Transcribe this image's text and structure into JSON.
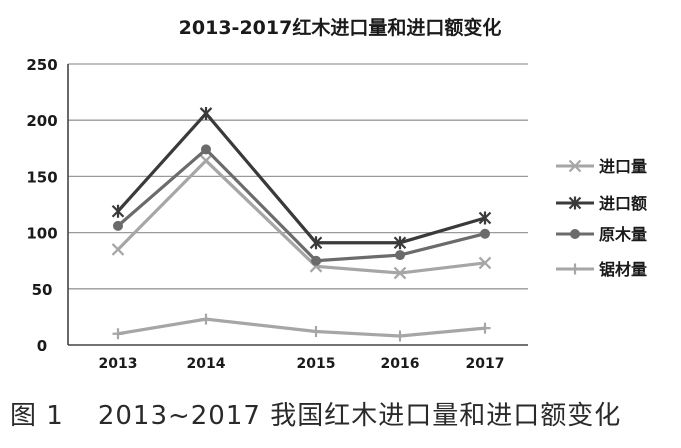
{
  "chart_data": {
    "type": "line",
    "title": "2013-2017红木进口量和进口额变化",
    "categories": [
      "2013",
      "2014",
      "2015",
      "2016",
      "2017"
    ],
    "ylim": [
      0,
      250
    ],
    "yticks": [
      0,
      50,
      100,
      150,
      200,
      250
    ],
    "grid": true,
    "legend_position": "right",
    "series": [
      {
        "name": "进口量",
        "values": [
          85,
          164,
          70,
          64,
          73
        ],
        "color": "#a6a6a6",
        "marker": "x"
      },
      {
        "name": "进口额",
        "values": [
          119,
          206,
          91,
          91,
          113
        ],
        "color": "#3a3a3a",
        "marker": "star"
      },
      {
        "name": "原木量",
        "values": [
          106,
          174,
          75,
          80,
          99
        ],
        "color": "#6b6b6b",
        "marker": "circle"
      },
      {
        "name": "锯材量",
        "values": [
          10,
          23,
          12,
          8,
          15
        ],
        "color": "#a6a6a6",
        "marker": "plus"
      }
    ]
  },
  "caption": {
    "figure_label": "图 1",
    "text": "2013~2017 我国红木进口量和进口额变化"
  }
}
